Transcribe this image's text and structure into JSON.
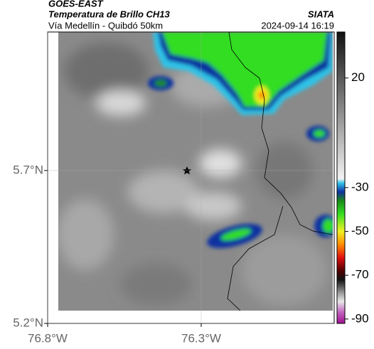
{
  "header": {
    "source": "GOES-EAST",
    "title": "Temperatura de Brillo CH13",
    "organization": "SIATA",
    "route": "Vía Medellín - Quibdó 50km",
    "timestamp": "2024-09-14 16:19"
  },
  "map": {
    "lon_range": [
      -76.8,
      -75.867
    ],
    "lat_range": [
      5.2,
      6.153
    ],
    "lat_ticks": [
      {
        "value": 5.7,
        "label": "5.7°N"
      },
      {
        "value": 5.2,
        "label": "5.2°N"
      }
    ],
    "lon_ticks": [
      {
        "value": -76.8,
        "label": "76.8°W"
      },
      {
        "value": -76.3,
        "label": "76.3°W"
      }
    ],
    "grid": true
  },
  "colorbar": {
    "range": [
      -92,
      41
    ],
    "ticks": [
      20,
      -30,
      -50,
      -70,
      -90
    ],
    "stops": [
      {
        "value": 41,
        "color": "#111111"
      },
      {
        "value": 20,
        "color": "#5a5a5a"
      },
      {
        "value": -26,
        "color": "#f2f2f2"
      },
      {
        "value": -28,
        "color": "#2ec4e8"
      },
      {
        "value": -32,
        "color": "#1030a0"
      },
      {
        "value": -36,
        "color": "#1a8a1a"
      },
      {
        "value": -42,
        "color": "#33dd22"
      },
      {
        "value": -50,
        "color": "#f0f020"
      },
      {
        "value": -56,
        "color": "#ff8c00"
      },
      {
        "value": -62,
        "color": "#e01010"
      },
      {
        "value": -68,
        "color": "#500000"
      },
      {
        "value": -72,
        "color": "#111111"
      },
      {
        "value": -78,
        "color": "#999999"
      },
      {
        "value": -82,
        "color": "#e8e8e8"
      },
      {
        "value": -87,
        "color": "#c060c0"
      },
      {
        "value": -92,
        "color": "#a01090"
      }
    ]
  }
}
